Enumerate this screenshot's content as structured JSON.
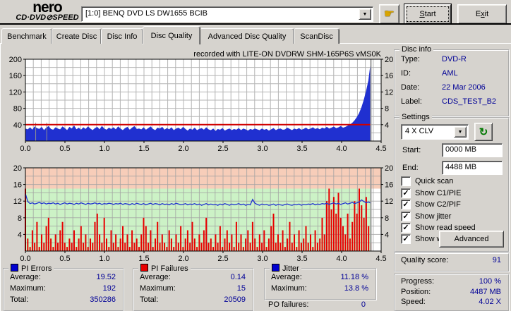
{
  "toolbar": {
    "logo_line1": "nero",
    "logo_line2": "CD·DVD⊘SPEED",
    "drive_selector": "[1:0]   BENQ DVD LS DW1655 BCIB",
    "start_label": "Start",
    "exit_label": "Exit"
  },
  "tabs": {
    "items": [
      {
        "label": "Benchmark",
        "active": false
      },
      {
        "label": "Create Disc",
        "active": false
      },
      {
        "label": "Disc Info",
        "active": false
      },
      {
        "label": "Disc Quality",
        "active": true
      },
      {
        "label": "Advanced Disc Quality",
        "active": false
      },
      {
        "label": "ScanDisc",
        "active": false
      }
    ]
  },
  "chart_data": [
    {
      "type": "area",
      "name": "PI Errors (C1/PIE)",
      "title": "recorded with LITE-ON DVDRW SHM-165P6S vMS0K",
      "x_range": [
        0,
        4.5
      ],
      "x_ticks": [
        "0.0",
        "0.5",
        "1.0",
        "1.5",
        "2.0",
        "2.5",
        "3.0",
        "3.5",
        "4.0",
        "4.5"
      ],
      "y_left_range": [
        0,
        200
      ],
      "y_left_ticks": [
        200,
        160,
        120,
        80,
        40
      ],
      "y_right_range": [
        0,
        20
      ],
      "y_right_ticks": [
        20,
        16,
        12,
        8,
        4
      ],
      "threshold": 40,
      "threshold_color": "#d00000",
      "data_end_x": 4.37,
      "dropout_x": [
        0.13,
        0.27
      ],
      "color": "#2030d0",
      "values": [
        30,
        28,
        33,
        27,
        35,
        31,
        29,
        34,
        26,
        32,
        36,
        29,
        27,
        33,
        30,
        28,
        35,
        31,
        26,
        34,
        30,
        37,
        28,
        32,
        27,
        33,
        29,
        35,
        30,
        26,
        31,
        34,
        28,
        36,
        30,
        27,
        32,
        29,
        33,
        28,
        35,
        30,
        26,
        31,
        34,
        27,
        32,
        36,
        29,
        30,
        28,
        33,
        27,
        31,
        35,
        29,
        26,
        32,
        30,
        34,
        27,
        31,
        28,
        33,
        26,
        30,
        32,
        28,
        34,
        29,
        25,
        30,
        27,
        32,
        26,
        29,
        31,
        27,
        33,
        28,
        26,
        30,
        24,
        29,
        27,
        31,
        25,
        28,
        30,
        26,
        29,
        27,
        31,
        26,
        30,
        28,
        25,
        29,
        27,
        30,
        28,
        26,
        30,
        27,
        29,
        25,
        28,
        31,
        26,
        29,
        30,
        27,
        28,
        32,
        29,
        26,
        30,
        28,
        31,
        27,
        29,
        32,
        28,
        30,
        33,
        29,
        31,
        28,
        32,
        30,
        34,
        30,
        32,
        35,
        31,
        33,
        36,
        32,
        34,
        37,
        40,
        44,
        50,
        58,
        68,
        82,
        100,
        122,
        148,
        192
      ]
    },
    {
      "type": "combo",
      "x_range": [
        0,
        4.5
      ],
      "x_ticks": [
        "0.0",
        "0.5",
        "1.0",
        "1.5",
        "2.0",
        "2.5",
        "3.0",
        "3.5",
        "4.0",
        "4.5"
      ],
      "y_range": [
        0,
        20
      ],
      "y_ticks": [
        20,
        16,
        12,
        8,
        4
      ],
      "zones": [
        {
          "from": 15,
          "to": 20,
          "color": "#f7cdb9"
        },
        {
          "from": 0,
          "to": 15,
          "color": "#ccf2c6"
        }
      ],
      "data_end_x": 4.37,
      "series": [
        {
          "name": "PI Failures (C2/PIF)",
          "type": "bar",
          "color": "#e80000",
          "values": [
            15,
            3,
            1,
            5,
            2,
            7,
            1,
            4,
            2,
            6,
            8,
            3,
            1,
            4,
            2,
            5,
            7,
            2,
            1,
            3,
            2,
            5,
            1,
            3,
            6,
            2,
            4,
            1,
            3,
            2,
            7,
            9,
            4,
            2,
            8,
            3,
            1,
            5,
            2,
            4,
            1,
            3,
            6,
            2,
            4,
            1,
            5,
            2,
            3,
            1,
            4,
            8,
            6,
            2,
            5,
            1,
            3,
            7,
            2,
            4,
            2,
            1,
            5,
            3,
            1,
            4,
            2,
            6,
            1,
            3,
            5,
            2,
            7,
            3,
            1,
            4,
            2,
            5,
            8,
            2,
            3,
            1,
            4,
            2,
            6,
            1,
            3,
            5,
            2,
            4,
            1,
            7,
            2,
            4,
            1,
            3,
            5,
            2,
            7,
            3,
            1,
            4,
            2,
            5,
            1,
            3,
            6,
            9,
            2,
            4,
            2,
            5,
            1,
            3,
            7,
            2,
            4,
            1,
            5,
            2,
            3,
            6,
            2,
            4,
            1,
            5,
            2,
            3,
            8,
            4,
            12,
            15,
            10,
            13,
            9,
            14,
            8,
            6,
            4,
            9,
            3,
            7,
            12,
            9,
            15,
            11,
            8,
            13,
            6,
            2
          ]
        },
        {
          "name": "Jitter",
          "type": "line",
          "color": "#2030d0",
          "values": [
            13.8,
            11.9,
            11.4,
            11.6,
            11.3,
            11.5,
            11.7,
            11.4,
            11.6,
            11.3,
            11.5,
            11.4,
            11.6,
            11.3,
            11.5,
            11.2,
            11.4,
            11.6,
            11.3,
            11.5,
            11.4,
            11.2,
            11.5,
            11.3,
            11.6,
            11.4,
            11.2,
            11.5,
            11.3,
            11.4,
            11.6,
            11.3,
            11.5,
            11.2,
            11.4,
            11.3,
            11.5,
            11.4,
            11.2,
            11.4,
            11.3,
            11.5,
            11.2,
            11.4,
            11.3,
            11.1,
            11.4,
            11.2,
            11.5,
            11.3,
            11.2,
            11.4,
            11.1,
            11.3,
            11.5,
            11.2,
            11.4,
            11.3,
            11.1,
            11.4,
            11.2,
            11.3,
            11.1,
            11.4,
            11.2,
            11.5,
            11.3,
            11.1,
            11.2,
            11.4,
            11.1,
            11.3,
            11.2,
            11.4,
            11.1,
            11.3,
            11.0,
            11.2,
            11.4,
            11.1,
            11.3,
            11.1,
            11.2,
            11.0,
            11.3,
            11.1,
            11.4,
            11.2,
            11.0,
            11.3,
            11.1,
            11.2,
            11.4,
            11.1,
            11.3,
            11.0,
            11.2,
            11.1,
            12.4,
            11.5,
            11.2,
            11.0,
            11.3,
            11.1,
            11.2,
            11.0,
            11.1,
            11.3,
            11.0,
            11.2,
            11.1,
            11.0,
            11.2,
            11.3,
            11.1,
            11.0,
            11.2,
            11.1,
            11.3,
            11.0,
            11.2,
            11.1,
            11.3,
            11.2,
            11.4,
            11.1,
            11.3,
            11.2,
            11.4,
            11.3,
            11.5,
            11.2,
            11.4,
            11.6,
            11.3,
            11.5,
            11.2,
            11.4,
            11.6,
            11.3,
            11.5,
            11.7,
            11.4,
            11.6,
            11.8,
            12.3,
            11.9,
            11.6,
            11.8,
            11.5
          ]
        }
      ]
    }
  ],
  "disc_info": {
    "title": "Disc info",
    "rows": [
      {
        "label": "Type:",
        "value": "DVD-R"
      },
      {
        "label": "ID:",
        "value": "AML"
      },
      {
        "label": "Date:",
        "value": "22 Mar 2006"
      },
      {
        "label": "Label:",
        "value": "CDS_TEST_B2"
      }
    ]
  },
  "settings": {
    "title": "Settings",
    "speed_selector": "4 X CLV",
    "start_label": "Start:",
    "start_value": "0000 MB",
    "end_label": "End:",
    "end_value": "4488 MB",
    "checkboxes": [
      {
        "label": "Quick scan",
        "checked": false
      },
      {
        "label": "Show C1/PIE",
        "checked": true
      },
      {
        "label": "Show C2/PIF",
        "checked": true
      },
      {
        "label": "Show jitter",
        "checked": true
      },
      {
        "label": "Show read speed",
        "checked": true
      },
      {
        "label": "Show write speed",
        "checked": true
      }
    ],
    "advanced_label": "Advanced"
  },
  "quality_score": {
    "label": "Quality score:",
    "value": "91"
  },
  "progress_panel": {
    "rows": [
      {
        "label": "Progress:",
        "value": "100 %"
      },
      {
        "label": "Position:",
        "value": "4487 MB"
      },
      {
        "label": "Speed:",
        "value": "4.02 X"
      }
    ]
  },
  "stats_panels": [
    {
      "title": "PI Errors",
      "swatch": "#0000d0",
      "rows": [
        {
          "label": "Average:",
          "value": "19.52"
        },
        {
          "label": "Maximum:",
          "value": "192"
        },
        {
          "label": "Total:",
          "value": "350286"
        }
      ]
    },
    {
      "title": "PI Failures",
      "swatch": "#e80000",
      "rows": [
        {
          "label": "Average:",
          "value": "0.14"
        },
        {
          "label": "Maximum:",
          "value": "15"
        },
        {
          "label": "Total:",
          "value": "20509"
        }
      ]
    },
    {
      "title": "Jitter",
      "swatch": "#0000d0",
      "rows": [
        {
          "label": "Average:",
          "value": "11.18 %"
        },
        {
          "label": "Maximum:",
          "value": "13.8 %"
        }
      ]
    }
  ],
  "po_failures": {
    "label": "PO failures:",
    "value": "0"
  }
}
